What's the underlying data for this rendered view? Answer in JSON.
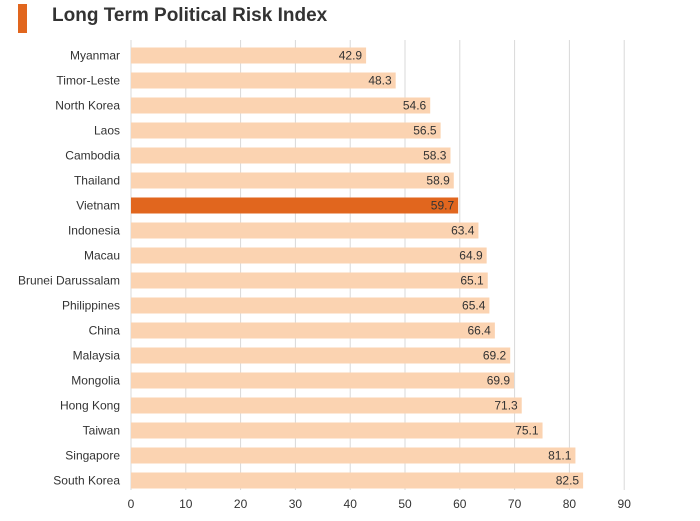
{
  "colors": {
    "accent": "#E1661E",
    "bar": "#FBD3B1",
    "highlight_bar": "#E1661E",
    "grid": "#D9D9D9",
    "text": "#333333",
    "highlight_label": "#FFFFFF"
  },
  "chart_data": {
    "type": "bar",
    "orientation": "horizontal",
    "title": "Long Term Political Risk Index",
    "xlabel": "",
    "ylabel": "",
    "categories": [
      "Myanmar",
      "Timor-Leste",
      "North Korea",
      "Laos",
      "Cambodia",
      "Thailand",
      "Vietnam",
      "Indonesia",
      "Macau",
      "Brunei Darussalam",
      "Philippines",
      "China",
      "Malaysia",
      "Mongolia",
      "Hong Kong",
      "Taiwan",
      "Singapore",
      "South Korea"
    ],
    "values": [
      42.9,
      48.3,
      54.6,
      56.5,
      58.3,
      58.9,
      59.7,
      63.4,
      64.9,
      65.1,
      65.4,
      66.4,
      69.2,
      69.9,
      71.3,
      75.1,
      81.1,
      82.5
    ],
    "value_labels": [
      "42.9",
      "48.3",
      "54.6",
      "56.5",
      "58.3",
      "58.9",
      "59.7",
      "63.4",
      "64.9",
      "65.1",
      "65.4",
      "66.4",
      "69.2",
      "69.9",
      "71.3",
      "75.1",
      "81.1",
      "82.5"
    ],
    "highlight": "Vietnam",
    "xlim": [
      0,
      90
    ],
    "xticks": [
      "0",
      "10",
      "20",
      "30",
      "40",
      "50",
      "60",
      "70",
      "80",
      "90"
    ],
    "grid": true,
    "legend": "none"
  }
}
